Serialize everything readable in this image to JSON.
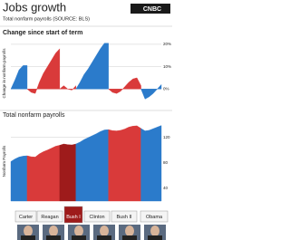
{
  "header": {
    "title": "Jobs growth",
    "subtitle": "Total nonfarm payrolls (SOURCE: BLS)",
    "logo": "CNBC"
  },
  "chart_data": [
    {
      "type": "area",
      "title": "Change since start of term",
      "y_label": "Change in nonfarm payrolls",
      "xlim": [
        1977,
        2014
      ],
      "ylim": [
        -8,
        22
      ],
      "yticks": [
        {
          "value": 0,
          "label": "0%"
        },
        {
          "value": 10,
          "label": "10%"
        },
        {
          "value": 20,
          "label": "20%"
        }
      ],
      "grid": true,
      "series": [
        {
          "name": "Carter",
          "color": "#2b7bcb",
          "x": [
            1977,
            1978,
            1979,
            1980,
            1981
          ],
          "values": [
            0,
            4,
            8.5,
            10.5,
            10.5
          ]
        },
        {
          "name": "Reagan",
          "color": "#d93a3a",
          "x": [
            1981,
            1982,
            1983,
            1984,
            1985,
            1986,
            1987,
            1988,
            1989
          ],
          "values": [
            0,
            -1.5,
            -2,
            3,
            7,
            10,
            13,
            16,
            18
          ]
        },
        {
          "name": "Bush I",
          "color": "#d93a3a",
          "x": [
            1989,
            1990,
            1991,
            1992,
            1993
          ],
          "values": [
            0,
            1.5,
            0,
            -0.5,
            1.5
          ]
        },
        {
          "name": "Clinton",
          "color": "#2b7bcb",
          "x": [
            1993,
            1994,
            1995,
            1996,
            1997,
            1998,
            1999,
            2000,
            2001
          ],
          "values": [
            0,
            3,
            6.5,
            9,
            12,
            15,
            18,
            20.5,
            20.5
          ]
        },
        {
          "name": "Bush II",
          "color": "#d93a3a",
          "x": [
            2001,
            2002,
            2003,
            2004,
            2005,
            2006,
            2007,
            2008,
            2009
          ],
          "values": [
            0,
            -1.5,
            -2,
            -1,
            1,
            3,
            4.5,
            5,
            1.5
          ]
        },
        {
          "name": "Obama",
          "color": "#2b7bcb",
          "x": [
            2009,
            2010,
            2011,
            2012,
            2013,
            2014
          ],
          "values": [
            0,
            -4.5,
            -3.5,
            -2,
            0,
            2
          ]
        }
      ]
    },
    {
      "type": "area",
      "title": "Total nonfarm payrolls",
      "y_label": "Nonfarm Payrolls",
      "xlim": [
        1977,
        2014
      ],
      "ylim": [
        20,
        145
      ],
      "yticks": [
        40,
        80,
        120
      ],
      "grid": true,
      "series": [
        {
          "color": "#2b7bcb",
          "x": [
            1977,
            1978,
            1979,
            1980,
            1981
          ],
          "values": [
            82,
            86,
            89,
            90.5,
            91
          ]
        },
        {
          "color": "#d93a3a",
          "x": [
            1981,
            1982,
            1983,
            1984,
            1985,
            1986,
            1987,
            1988,
            1989
          ],
          "values": [
            91,
            89.5,
            89,
            94,
            97.5,
            100,
            103,
            106,
            107.5
          ]
        },
        {
          "color": "#9e1b1b",
          "x": [
            1989,
            1990,
            1991,
            1992,
            1993
          ],
          "values": [
            107.5,
            109.5,
            108.5,
            108,
            109.5
          ]
        },
        {
          "color": "#2b7bcb",
          "x": [
            1993,
            1994,
            1995,
            1996,
            1997,
            1998,
            1999,
            2000,
            2001
          ],
          "values": [
            109.5,
            112.5,
            116.5,
            119.5,
            122.5,
            125.5,
            129,
            131.5,
            132
          ]
        },
        {
          "color": "#d93a3a",
          "x": [
            2001,
            2002,
            2003,
            2004,
            2005,
            2006,
            2007,
            2008,
            2009
          ],
          "values": [
            132,
            130.5,
            130,
            131,
            133,
            136,
            137.5,
            138,
            134
          ]
        },
        {
          "color": "#2b7bcb",
          "x": [
            2009,
            2010,
            2011,
            2012,
            2013,
            2014
          ],
          "values": [
            134,
            130,
            131,
            133.5,
            136,
            138.5
          ]
        }
      ]
    }
  ]
}
